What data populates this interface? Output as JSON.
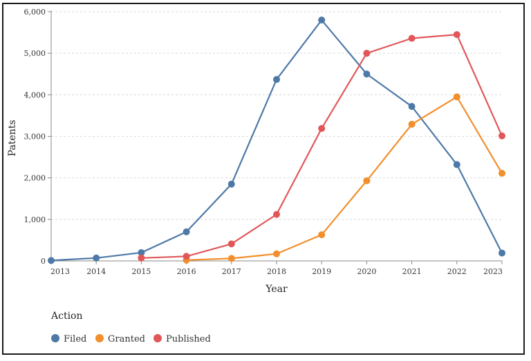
{
  "chart_data": {
    "type": "line",
    "xlabel": "Year",
    "ylabel": "Patents",
    "x": [
      2013,
      2014,
      2015,
      2016,
      2017,
      2018,
      2019,
      2020,
      2021,
      2022,
      2023
    ],
    "y_ticks": [
      "0",
      "1,000",
      "2,000",
      "3,000",
      "4,000",
      "5,000",
      "6,000"
    ],
    "x_ticks": [
      "2013",
      "2014",
      "2015",
      "2016",
      "2017",
      "2018",
      "2019",
      "2020",
      "2021",
      "2022",
      "2023"
    ],
    "ylim": [
      0,
      6000
    ],
    "grid": true,
    "legend": {
      "title": "Action",
      "placement": "bottom-left"
    },
    "series": [
      {
        "name": "Filed",
        "color": "#4e79a7",
        "x": [
          2013,
          2014,
          2015,
          2016,
          2017,
          2018,
          2019,
          2020,
          2021,
          2022,
          2023
        ],
        "values": [
          10,
          70,
          200,
          700,
          1850,
          4370,
          5800,
          4500,
          3720,
          2320,
          190
        ]
      },
      {
        "name": "Granted",
        "color": "#f28e2b",
        "x": [
          2016,
          2017,
          2018,
          2019,
          2020,
          2021,
          2022,
          2023
        ],
        "values": [
          20,
          60,
          170,
          630,
          1930,
          3290,
          3950,
          2110
        ]
      },
      {
        "name": "Published",
        "color": "#e15759",
        "x": [
          2015,
          2016,
          2017,
          2018,
          2019,
          2020,
          2021,
          2022,
          2023
        ],
        "values": [
          70,
          110,
          410,
          1120,
          3190,
          5000,
          5360,
          5450,
          3010
        ]
      }
    ]
  }
}
